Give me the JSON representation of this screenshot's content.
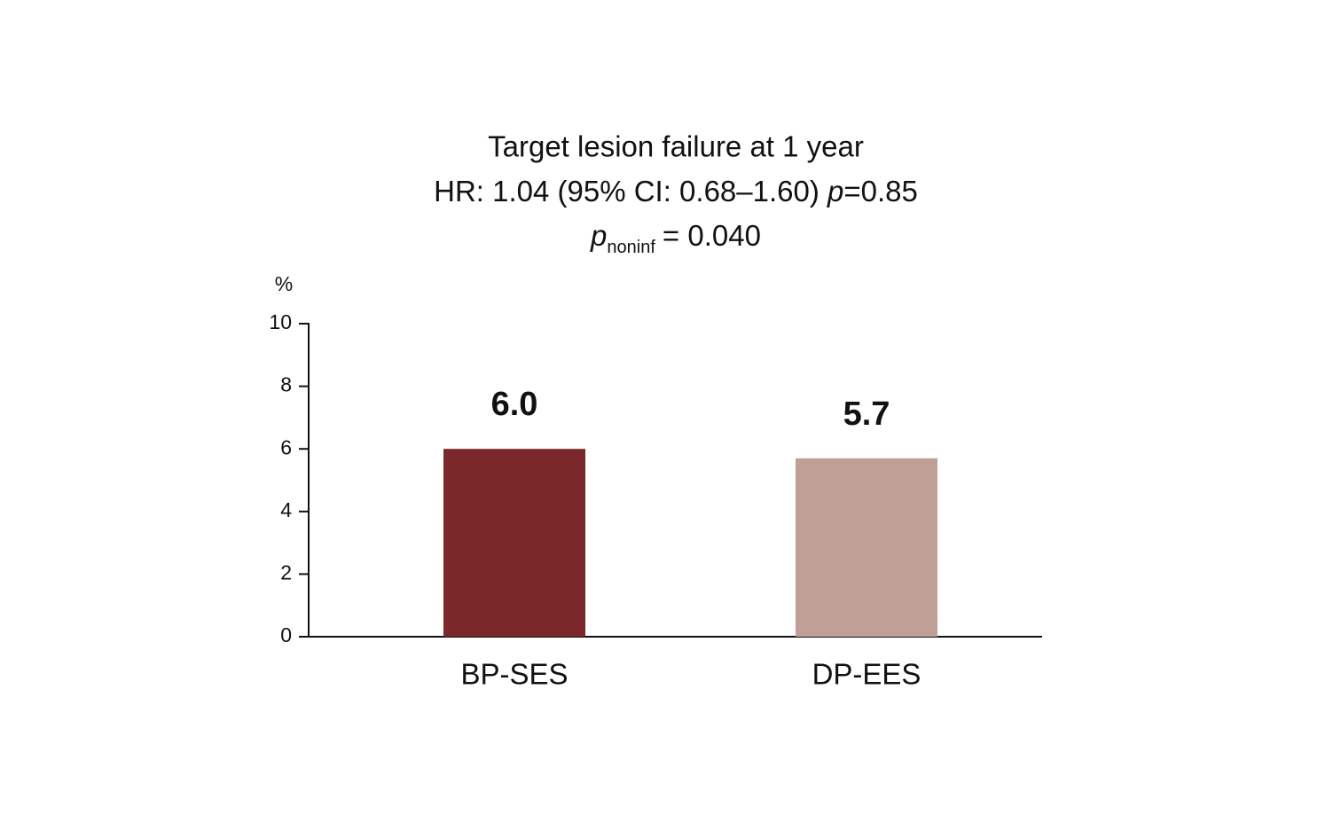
{
  "chart_data": {
    "type": "bar",
    "title": "Target lesion failure at 1 year",
    "subtitle": {
      "text": "HR: 1.04 (95% CI: 0.68–1.60)",
      "symbol": "p",
      "value": "=0.85"
    },
    "annotation": {
      "symbol": "p",
      "subscript": "noninf",
      "value": "= 0.040"
    },
    "y_label": "%",
    "categories": [
      "BP-SES",
      "DP-EES"
    ],
    "values": [
      6.0,
      5.7
    ],
    "value_labels": [
      "6.0",
      "5.7"
    ],
    "colors": [
      "#7b282b",
      "#c0a096"
    ],
    "ylim": [
      0,
      10
    ],
    "yticks": [
      0,
      2,
      4,
      6,
      8,
      10
    ]
  }
}
